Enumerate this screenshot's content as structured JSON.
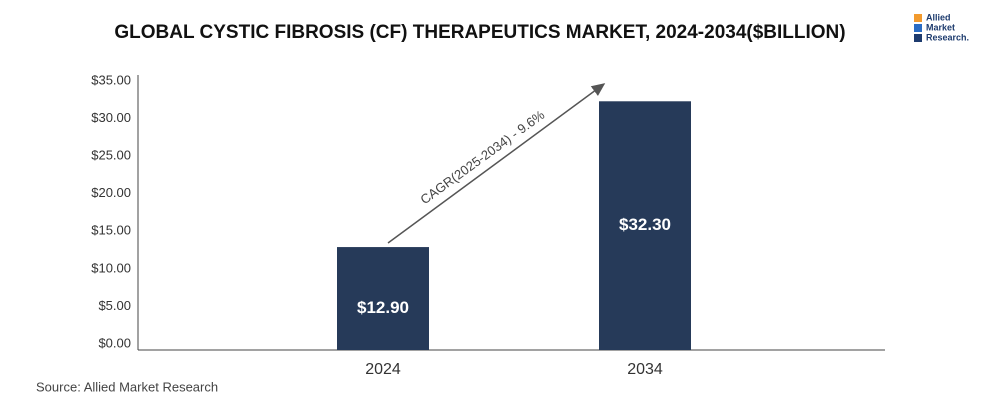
{
  "chart_data": {
    "type": "bar",
    "title": "GLOBAL CYSTIC FIBROSIS (CF) THERAPEUTICS MARKET, 2024-2034($BILLION)",
    "categories": [
      "2024",
      "2034"
    ],
    "values": [
      12.9,
      32.3
    ],
    "value_labels": [
      "$12.90",
      "$32.30"
    ],
    "color": "#263a59",
    "ylim": [
      0,
      35
    ],
    "yticks": [
      {
        "value": 0,
        "label": "$0.00"
      },
      {
        "value": 5,
        "label": "$5.00"
      },
      {
        "value": 10,
        "label": "$10.00"
      },
      {
        "value": 15,
        "label": "$15.00"
      },
      {
        "value": 20,
        "label": "$20.00"
      },
      {
        "value": 25,
        "label": "$25.00"
      },
      {
        "value": 30,
        "label": "$30.00"
      },
      {
        "value": 35,
        "label": "$35.00"
      }
    ],
    "annotation": "CAGR(2025-2034) - 9.6%",
    "source": "Source: Allied Market Research"
  },
  "logo": [
    "Allied",
    "Market",
    "Research."
  ]
}
